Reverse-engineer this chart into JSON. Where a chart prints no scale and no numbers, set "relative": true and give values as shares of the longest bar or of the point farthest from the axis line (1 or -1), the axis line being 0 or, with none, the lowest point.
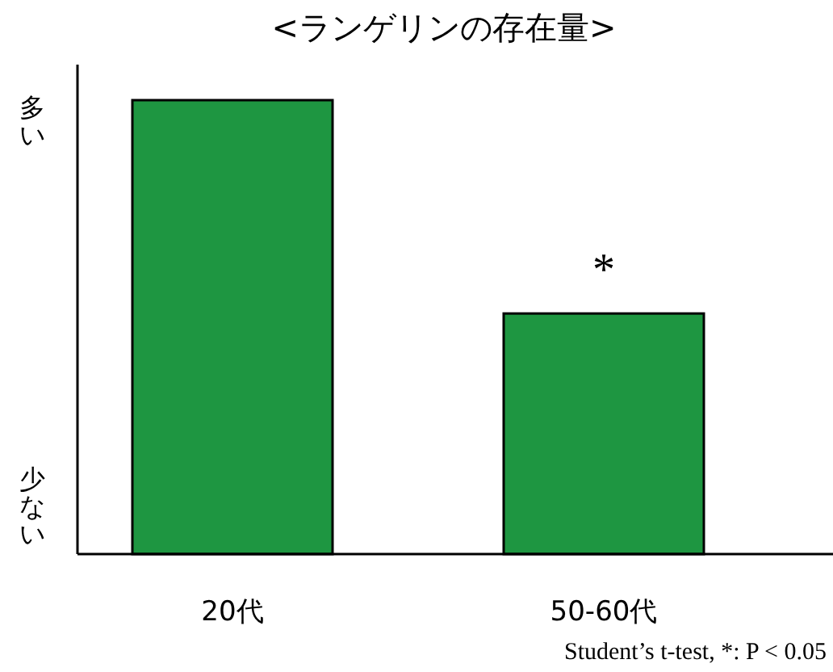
{
  "chart_data": {
    "type": "bar",
    "title": "<ランゲリンの存在量>",
    "categories": [
      "20代",
      "50-60代"
    ],
    "values": [
      1,
      0.53
    ],
    "color": "#1e9641",
    "relative": true,
    "annotations": [
      {
        "text": "*",
        "x": "50-60代",
        "y": 0.53
      },
      "多い",
      "少ない",
      "Student’s t-test, *: P < 0.05"
    ]
  }
}
